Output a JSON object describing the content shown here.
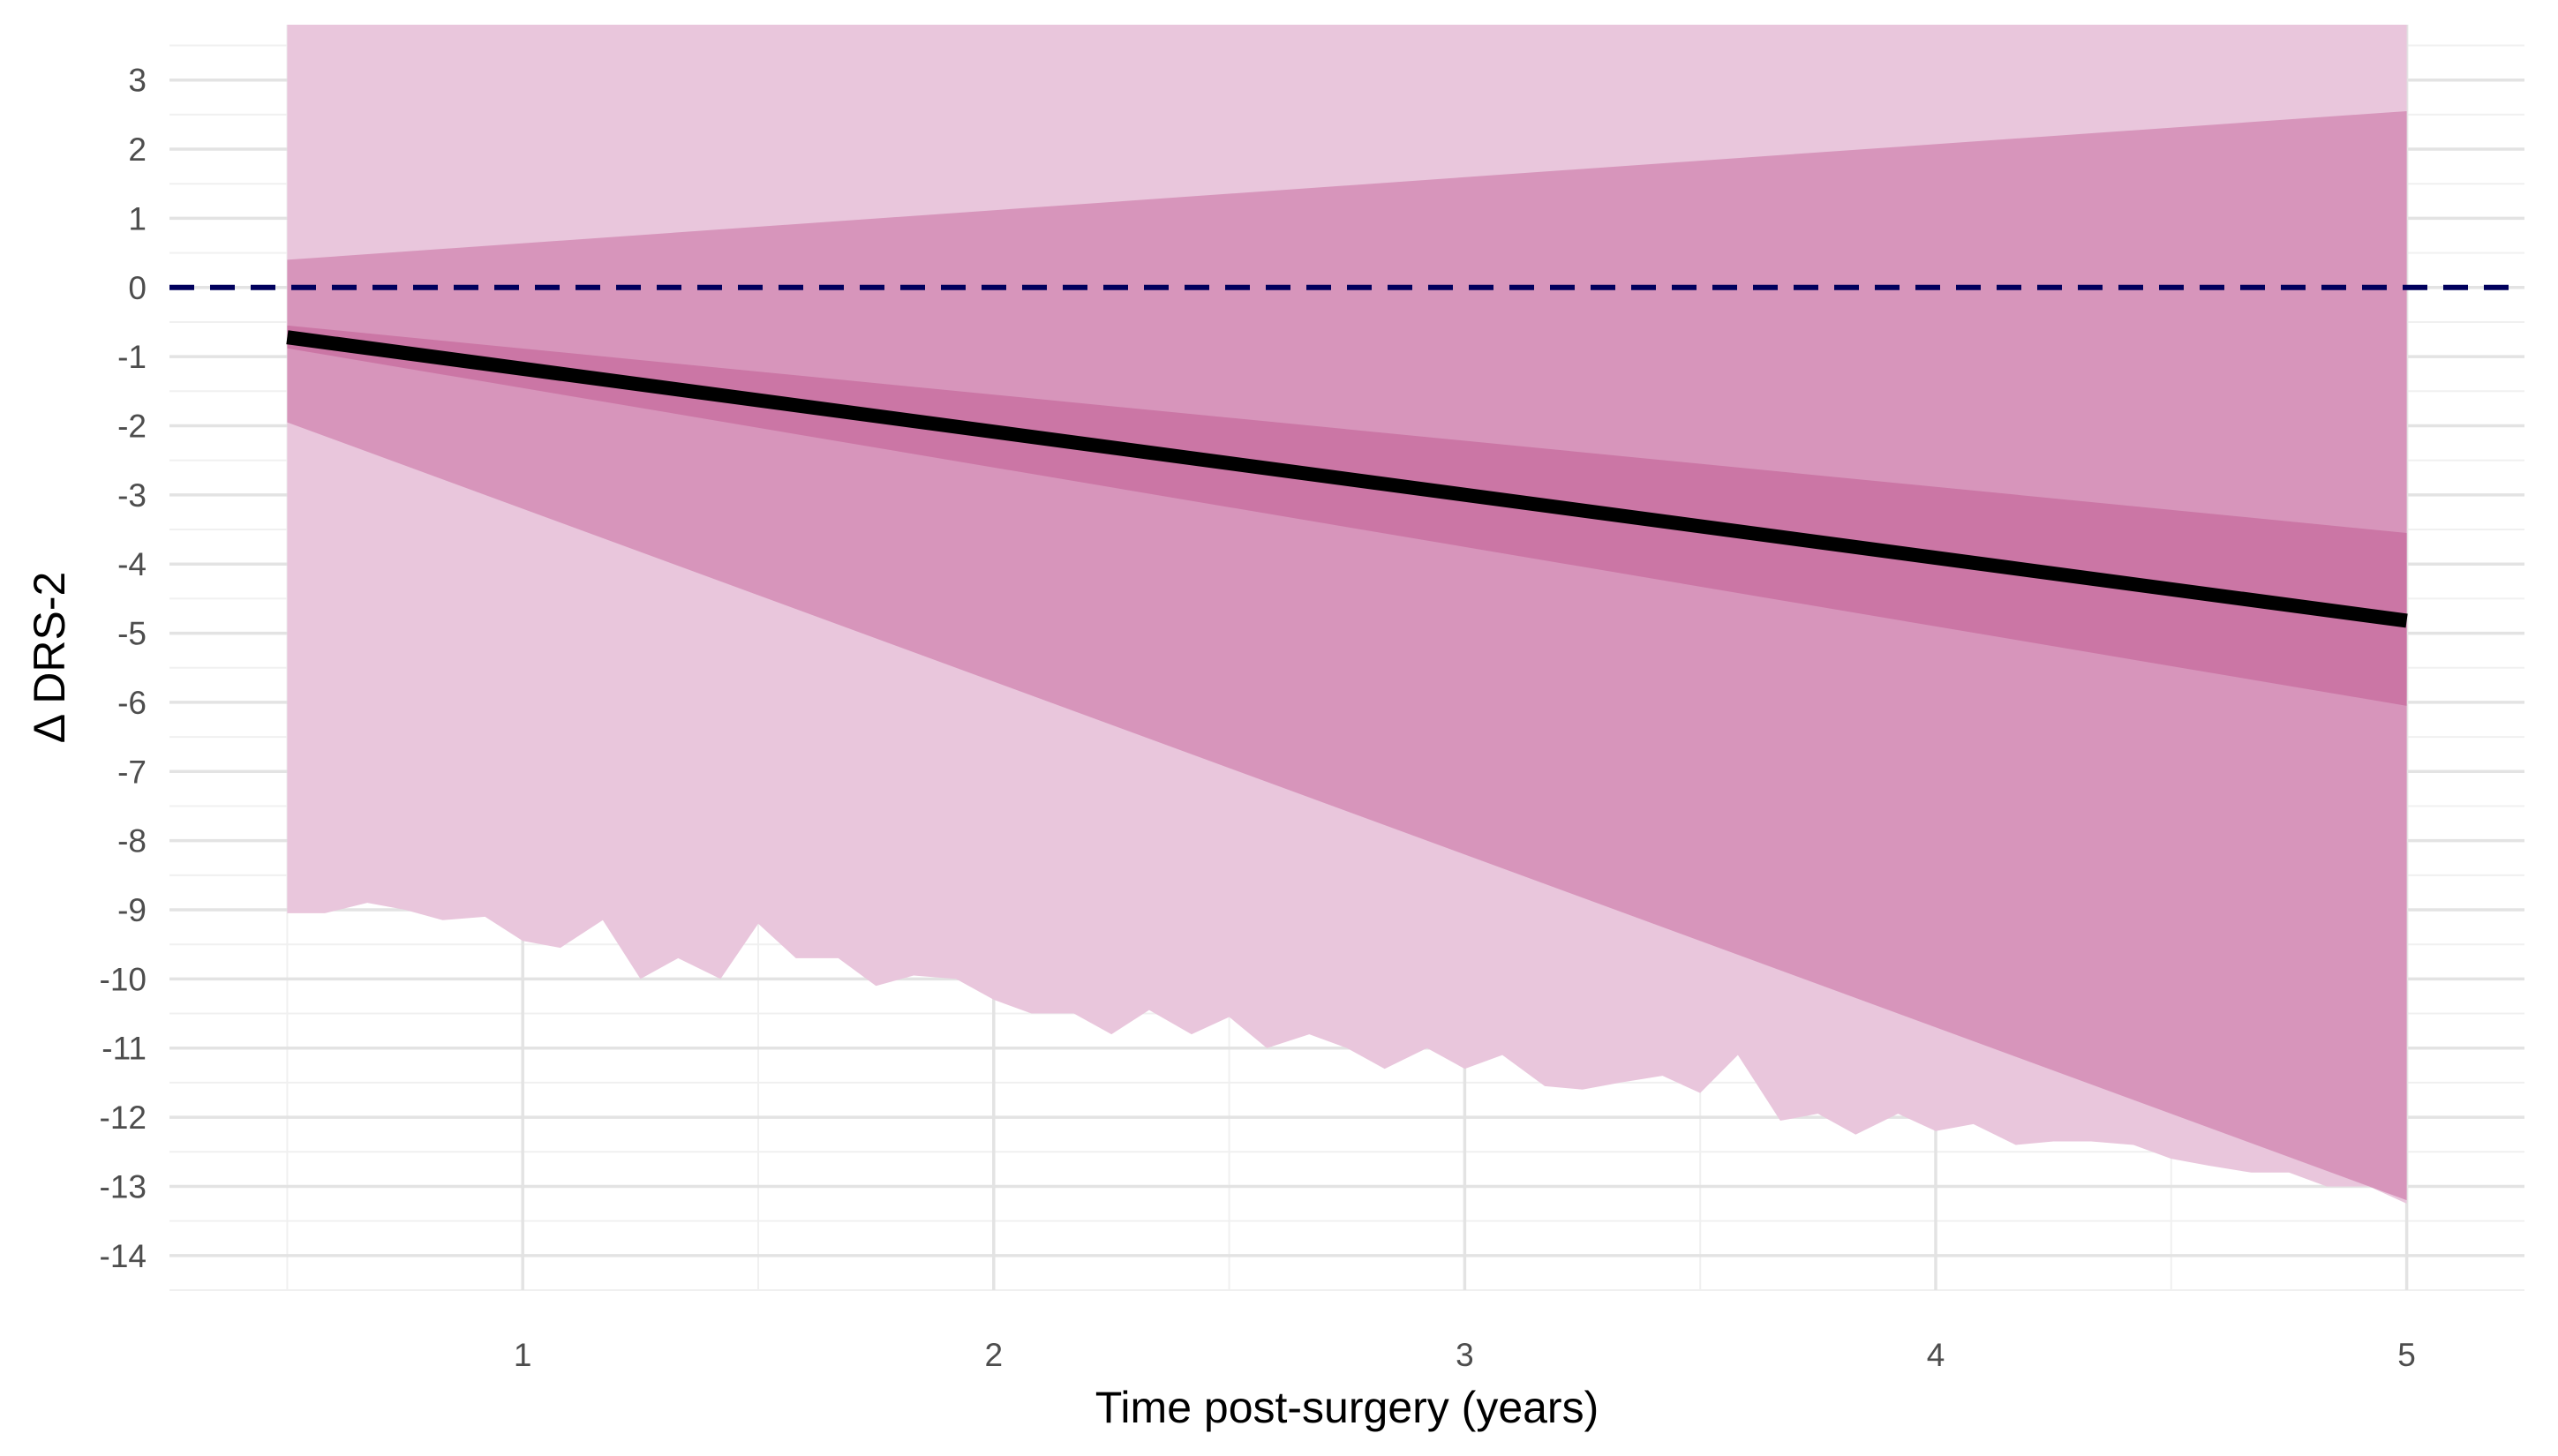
{
  "chart_data": {
    "type": "line",
    "title": "",
    "xlabel": "Time post-surgery (years)",
    "ylabel": "Δ DRS-2",
    "xlim": [
      0.25,
      5.25
    ],
    "ylim": [
      -14.5,
      3.8
    ],
    "x_ticks": [
      1,
      2,
      3,
      4,
      5
    ],
    "y_ticks": [
      3,
      2,
      1,
      0,
      -1,
      -2,
      -3,
      -4,
      -5,
      -6,
      -7,
      -8,
      -9,
      -10,
      -11,
      -12,
      -13,
      -14
    ],
    "grid": true,
    "legend": "none",
    "reference_line": {
      "y": 0,
      "style": "dashed",
      "color": "#00005c"
    },
    "colors": {
      "outer_band": "#e9c6dc",
      "middle_band": "#d795bb",
      "inner_band": "#cb76a5",
      "fit_line": "#000000"
    },
    "series": [
      {
        "kind": "line",
        "x": [
          0.5,
          5
        ],
        "y": [
          -0.72,
          -4.82
        ]
      },
      {
        "kind": "band",
        "x": [
          0.5,
          5
        ],
        "upper": [
          -0.55,
          -3.55
        ],
        "lower": [
          -0.88,
          -6.05
        ]
      },
      {
        "kind": "band",
        "x": [
          0.5,
          5
        ],
        "upper": [
          0.4,
          2.55
        ],
        "lower": [
          -1.95,
          -13.2
        ]
      },
      {
        "kind": "band",
        "upper_value": 3.8,
        "x": [
          0.5,
          0.58,
          0.67,
          0.75,
          0.83,
          0.92,
          1.0,
          1.08,
          1.17,
          1.25,
          1.33,
          1.42,
          1.5,
          1.58,
          1.67,
          1.75,
          1.83,
          1.92,
          2.0,
          2.08,
          2.17,
          2.25,
          2.33,
          2.42,
          2.5,
          2.58,
          2.67,
          2.75,
          2.83,
          2.92,
          3.0,
          3.08,
          3.17,
          3.25,
          3.33,
          3.42,
          3.5,
          3.58,
          3.67,
          3.75,
          3.83,
          3.92,
          4.0,
          4.08,
          4.17,
          4.25,
          4.33,
          4.42,
          4.5,
          4.58,
          4.67,
          4.75,
          4.83,
          4.92,
          5.0
        ],
        "lower": [
          -9.05,
          -9.05,
          -8.9,
          -9.0,
          -9.15,
          -9.1,
          -9.45,
          -9.55,
          -9.15,
          -10.0,
          -9.7,
          -10.0,
          -9.2,
          -9.7,
          -9.7,
          -10.1,
          -9.95,
          -10.0,
          -10.3,
          -10.5,
          -10.5,
          -10.8,
          -10.45,
          -10.8,
          -10.55,
          -11.0,
          -10.8,
          -11.0,
          -11.3,
          -11.0,
          -11.3,
          -11.1,
          -11.55,
          -11.6,
          -11.5,
          -11.4,
          -11.65,
          -11.1,
          -12.05,
          -11.95,
          -12.25,
          -11.95,
          -12.2,
          -12.1,
          -12.4,
          -12.35,
          -12.35,
          -12.4,
          -12.6,
          -12.7,
          -12.8,
          -12.8,
          -13.0,
          -13.0,
          -13.25
        ]
      }
    ]
  }
}
